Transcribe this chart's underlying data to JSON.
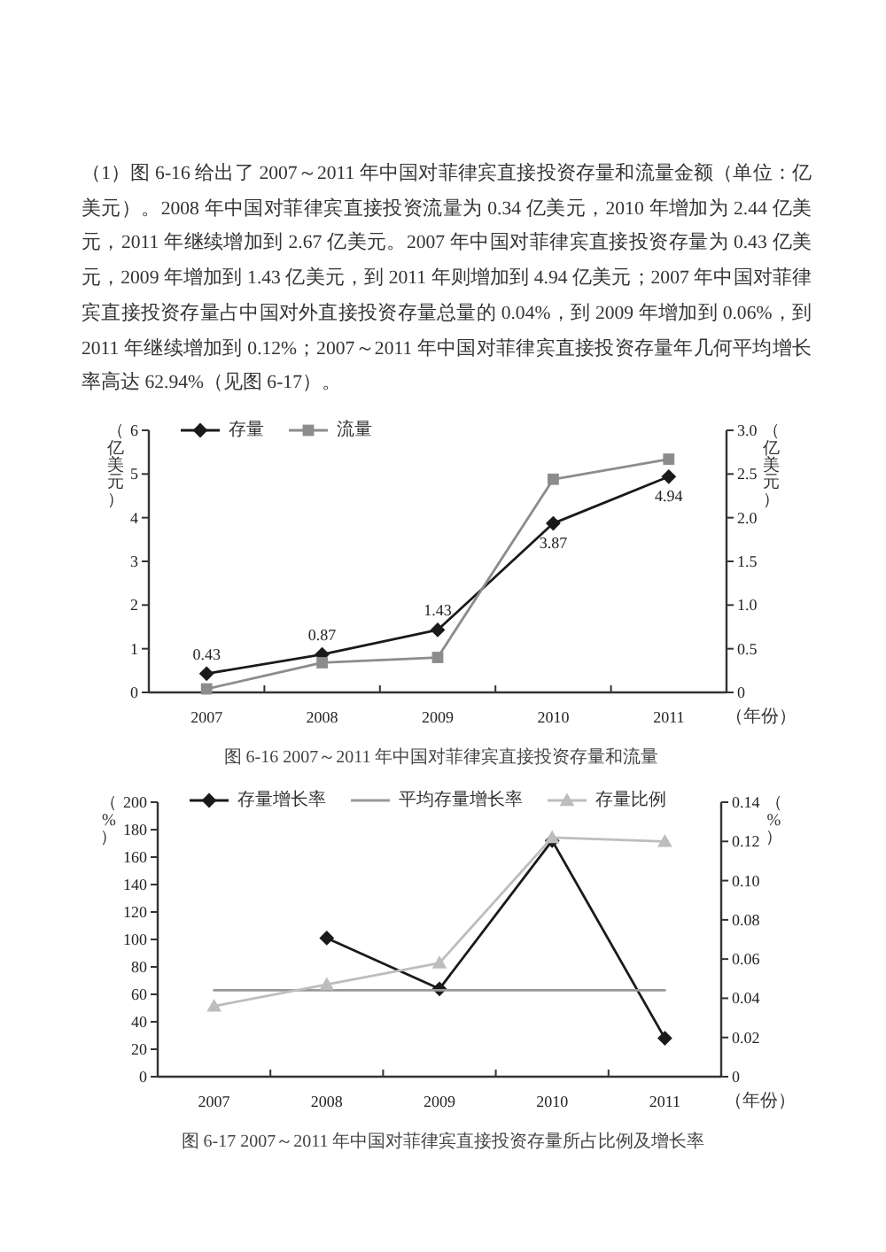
{
  "chart_data": [
    {
      "type": "line",
      "title": "图 6-16 2007～2011 年中国对菲律宾直接投资存量和流量",
      "annotations": [
        "（1）图 6-16 给出了 2007～2011 年中国对菲律宾直接投资存量和流量金额（单位：亿美元）。2008 年中国对菲律宾直接投资流量为 0.34 亿美元，2010 年增加为 2.44 亿美元，2011 年继续增加到 2.67 亿美元。2007 年中国对菲律宾直接投资存量为 0.43 亿美元，2009 年增加到 1.43 亿美元，到 2011 年则增加到 4.94 亿美元；2007 年中国对菲律宾直接投资存量占中国对外直接投资存量总量的 0.04%，到 2009 年增加到 0.06%，到 2011 年继续增加到 0.12%；2007～2011 年中国对菲律宾直接投资存量年几何平均增长率高达 62.94%（见图 6-17）。"
      ],
      "categories": [
        "2007",
        "2008",
        "2009",
        "2010",
        "2011"
      ],
      "xlabel": "（年份）",
      "ylabel": "（亿美元）",
      "y2label": "（亿美元）",
      "ylim": [
        0,
        6
      ],
      "yticks": [
        0,
        1,
        2,
        3,
        4,
        5,
        6
      ],
      "y2lim": [
        0,
        3
      ],
      "y2ticks": [
        0,
        0.5,
        {
          "value": 1,
          "label": "1.0"
        },
        1.5,
        {
          "value": 2,
          "label": "2.0"
        },
        2.5,
        {
          "value": 3,
          "label": "3.0"
        }
      ],
      "legend": "top left",
      "series": [
        {
          "name": "存量",
          "color": "#1a1a1a",
          "marker": "diamond",
          "values": [
            0.43,
            0.87,
            1.43,
            3.87,
            4.94
          ],
          "value_labels": [
            "0.43",
            "0.87",
            "1.43",
            "3.87",
            "4.94"
          ]
        },
        {
          "name": "流量",
          "color": "#8c8c8c",
          "marker": "square",
          "axis": "y2",
          "values": [
            0.04,
            0.34,
            0.4,
            2.44,
            2.67
          ]
        }
      ]
    },
    {
      "type": "line",
      "title": "图 6-17 2007～2011 年中国对菲律宾直接投资存量所占比例及增长率",
      "categories": [
        "2007",
        "2008",
        "2009",
        "2010",
        "2011"
      ],
      "xlabel": "（年份）",
      "ylabel": "（%）",
      "y2label": "（%）",
      "ylim": [
        0,
        200
      ],
      "yticks": [
        0,
        20,
        40,
        60,
        80,
        100,
        120,
        140,
        160,
        180,
        200
      ],
      "y2lim": [
        0,
        0.14
      ],
      "y2ticks": [
        0,
        0.02,
        0.04,
        0.06,
        0.08,
        {
          "value": 0.1,
          "label": "0.10"
        },
        0.12,
        0.14
      ],
      "legend": "top left",
      "series": [
        {
          "name": "存量增长率",
          "color": "#1a1a1a",
          "marker": "diamond",
          "values": [
            null,
            101,
            64,
            172,
            28
          ]
        },
        {
          "name": "平均存量增长率",
          "color": "#999999",
          "marker": "none",
          "values": [
            62.94,
            62.94,
            62.94,
            62.94,
            62.94
          ]
        },
        {
          "name": "存量比例",
          "color": "#bdbdbd",
          "marker": "triangle",
          "axis": "y2",
          "values": [
            0.036,
            0.047,
            0.058,
            0.122,
            0.12
          ]
        }
      ]
    }
  ]
}
